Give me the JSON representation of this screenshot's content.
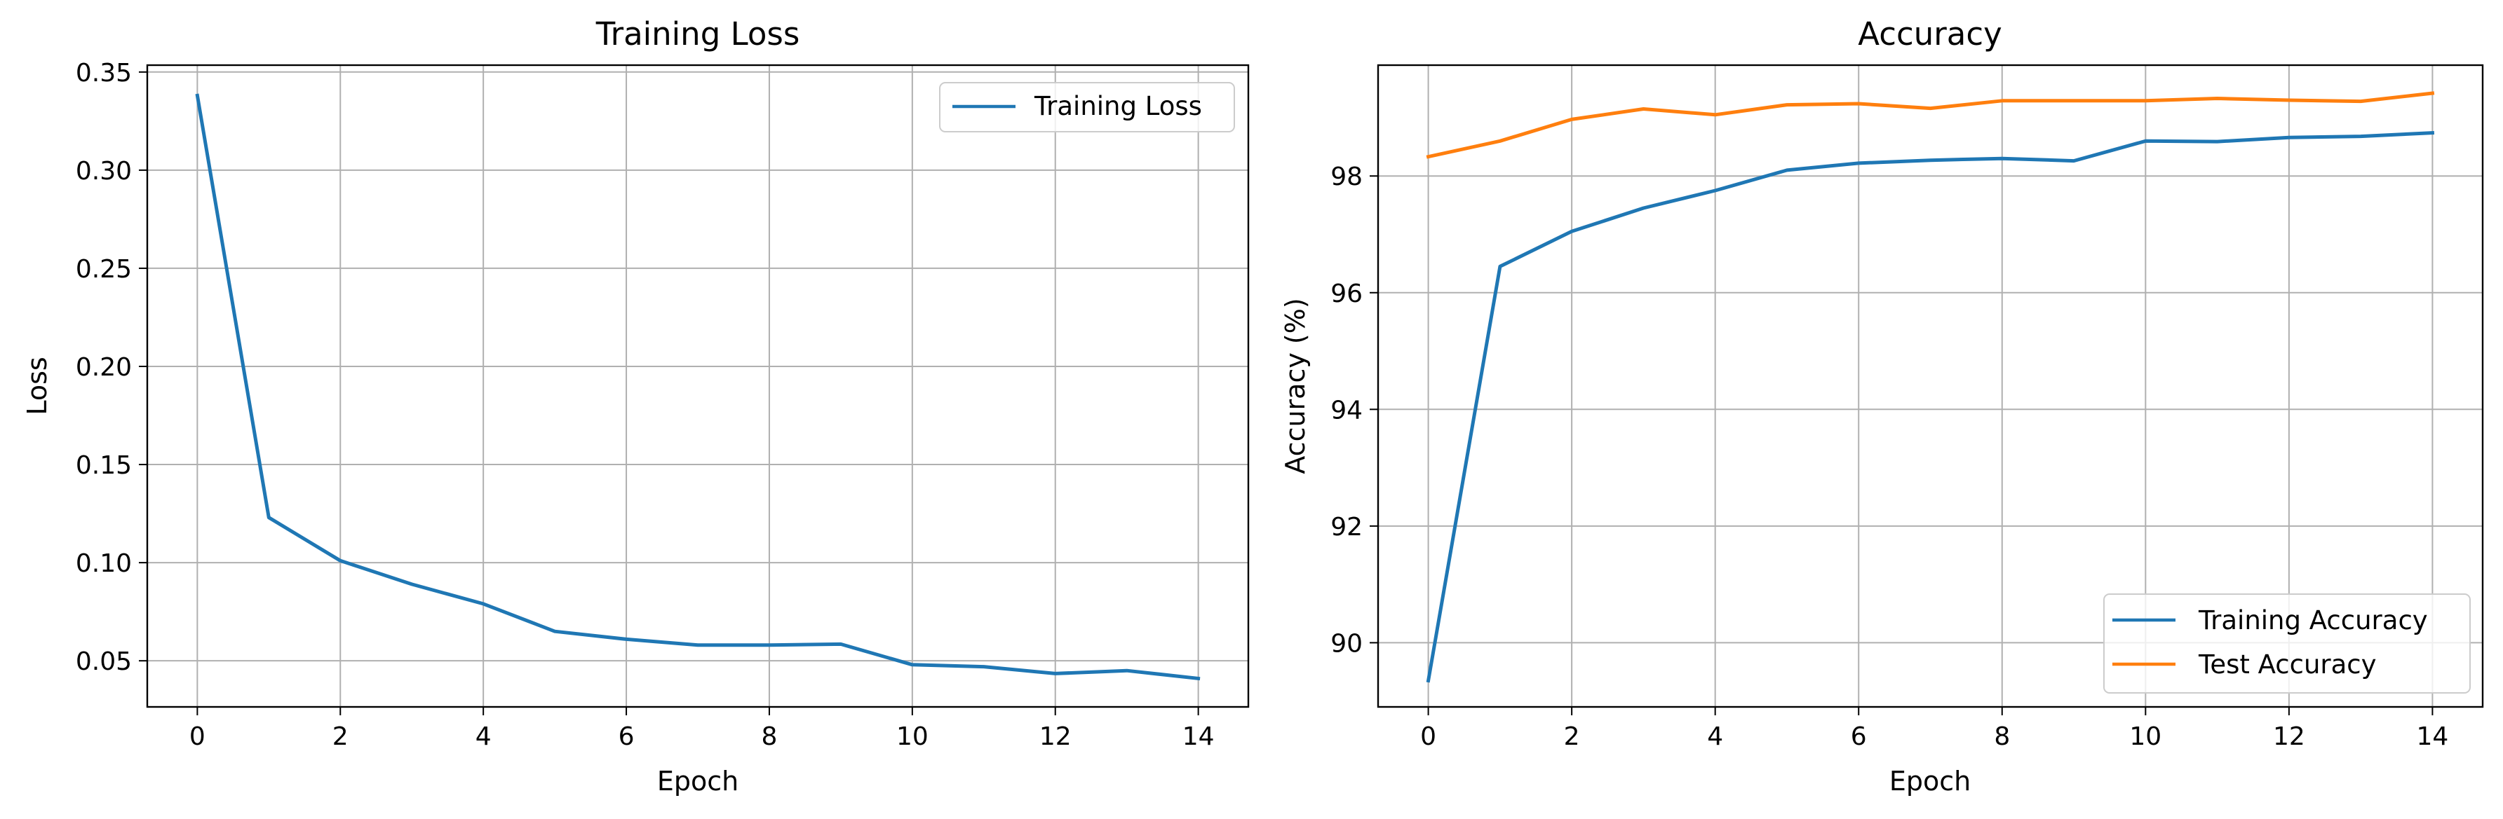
{
  "chart_data": [
    {
      "type": "line",
      "title": "Training Loss",
      "xlabel": "Epoch",
      "ylabel": "Loss",
      "x": [
        0,
        1,
        2,
        3,
        4,
        5,
        6,
        7,
        8,
        9,
        10,
        11,
        12,
        13,
        14
      ],
      "xlim": [
        -0.7,
        14.7
      ],
      "ylim": [
        0.0265,
        0.3535
      ],
      "xticks": [
        0,
        2,
        4,
        6,
        8,
        10,
        12,
        14
      ],
      "yticks": [
        0.05,
        0.1,
        0.15,
        0.2,
        0.25,
        0.3,
        0.35
      ],
      "ytick_labels": [
        "0.05",
        "0.10",
        "0.15",
        "0.20",
        "0.25",
        "0.30",
        "0.35"
      ],
      "grid": true,
      "legend_position": "top-right",
      "series": [
        {
          "name": "Training Loss",
          "color": "#1f77b4",
          "values": [
            0.338,
            0.123,
            0.101,
            0.089,
            0.079,
            0.065,
            0.061,
            0.058,
            0.058,
            0.0585,
            0.048,
            0.047,
            0.0435,
            0.045,
            0.041
          ]
        }
      ]
    },
    {
      "type": "line",
      "title": "Accuracy",
      "xlabel": "Epoch",
      "ylabel": "Accuracy (%)",
      "x": [
        0,
        1,
        2,
        3,
        4,
        5,
        6,
        7,
        8,
        9,
        10,
        11,
        12,
        13,
        14
      ],
      "xlim": [
        -0.7,
        14.7
      ],
      "ylim": [
        88.9,
        99.9
      ],
      "xticks": [
        0,
        2,
        4,
        6,
        8,
        10,
        12,
        14
      ],
      "yticks": [
        90,
        92,
        94,
        96,
        98
      ],
      "ytick_labels": [
        "90",
        "92",
        "94",
        "96",
        "98"
      ],
      "grid": true,
      "legend_position": "bottom-right",
      "series": [
        {
          "name": "Training Accuracy",
          "color": "#1f77b4",
          "values": [
            89.35,
            96.45,
            97.05,
            97.45,
            97.75,
            98.1,
            98.22,
            98.27,
            98.3,
            98.26,
            98.6,
            98.59,
            98.66,
            98.68,
            98.74
          ]
        },
        {
          "name": "Test Accuracy",
          "color": "#ff7f0e",
          "values": [
            98.33,
            98.6,
            98.97,
            99.15,
            99.05,
            99.22,
            99.24,
            99.16,
            99.29,
            99.29,
            99.29,
            99.33,
            99.3,
            99.28,
            99.42
          ]
        }
      ]
    }
  ]
}
